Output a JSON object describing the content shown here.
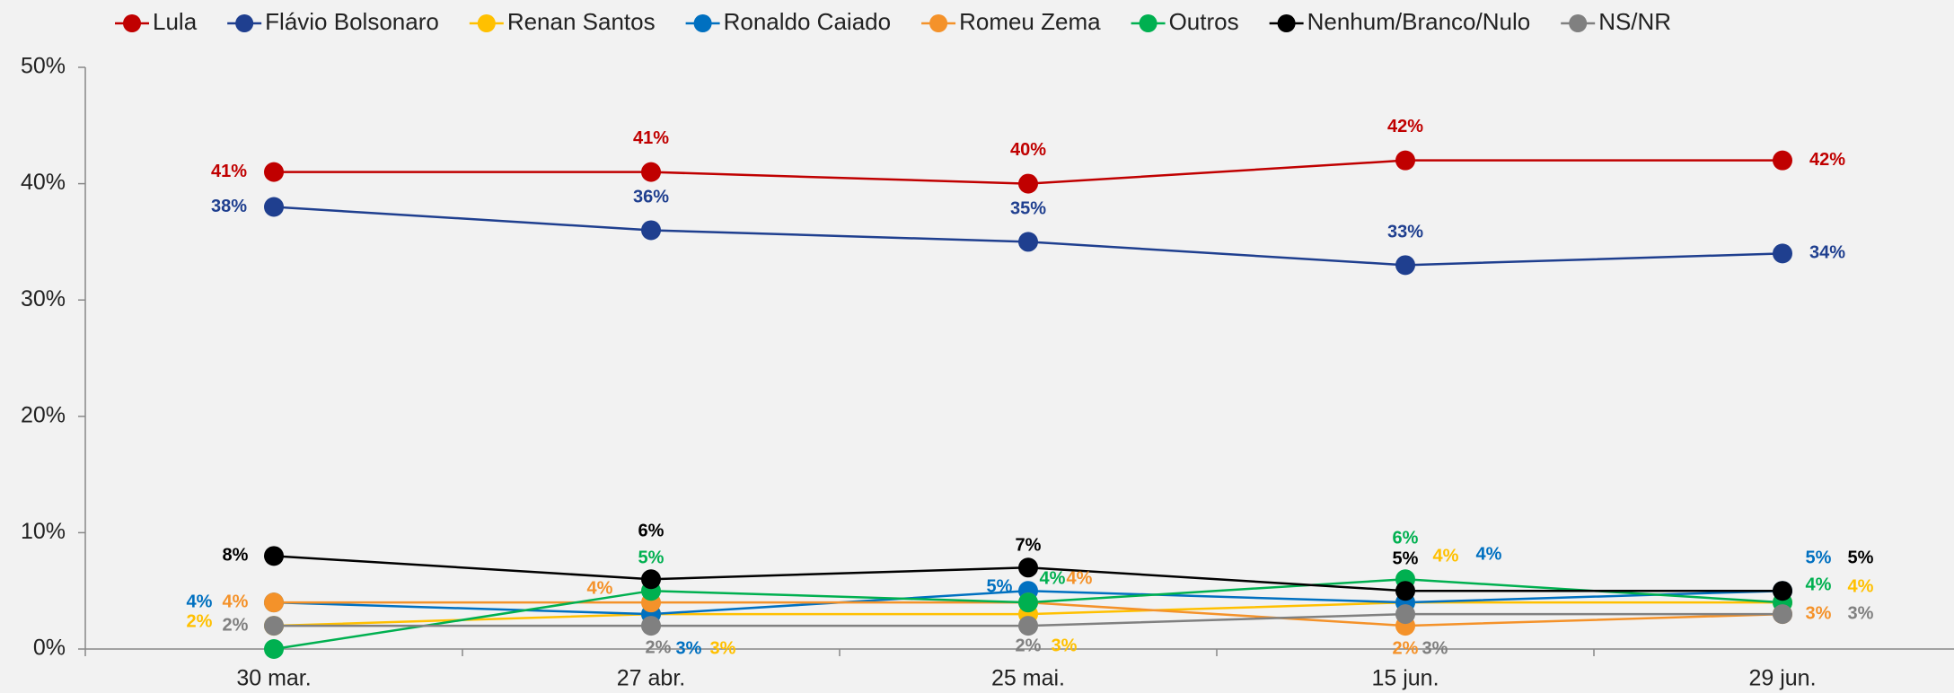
{
  "chart_data": {
    "type": "line",
    "categories": [
      "30 mar.",
      "27 abr.",
      "25 mai.",
      "15 jun.",
      "29 jun."
    ],
    "ylim": [
      0,
      50
    ],
    "yticks": [
      {
        "value": 0,
        "label": "0%"
      },
      {
        "value": 10,
        "label": "10%"
      },
      {
        "value": 20,
        "label": "20%"
      },
      {
        "value": 30,
        "label": "30%"
      },
      {
        "value": 40,
        "label": "40%"
      },
      {
        "value": 50,
        "label": "50%"
      }
    ],
    "legend": "top",
    "series": [
      {
        "name": "Lula",
        "color": "#c00000",
        "values": [
          41,
          41,
          40,
          42,
          42
        ],
        "value_labels": [
          "41%",
          "41%",
          "40%",
          "42%",
          "42%"
        ]
      },
      {
        "name": "Flávio Bolsonaro",
        "color": "#1f3f8f",
        "values": [
          38,
          36,
          35,
          33,
          34
        ],
        "value_labels": [
          "38%",
          "36%",
          "35%",
          "33%",
          "34%"
        ]
      },
      {
        "name": "Renan Santos",
        "color": "#ffc000",
        "values": [
          2,
          3,
          3,
          4,
          4
        ],
        "value_labels": [
          "2%",
          "3%",
          "3%",
          "4%",
          "4%"
        ]
      },
      {
        "name": "Ronaldo Caiado",
        "color": "#0070c0",
        "values": [
          4,
          3,
          5,
          4,
          5
        ],
        "value_labels": [
          "4%",
          "3%",
          "5%",
          "4%",
          "5%"
        ]
      },
      {
        "name": "Romeu Zema",
        "color": "#f4922a",
        "values": [
          4,
          4,
          4,
          2,
          3
        ],
        "value_labels": [
          "4%",
          "4%",
          "4%",
          "2%",
          "3%"
        ]
      },
      {
        "name": "Outros",
        "color": "#00b050",
        "values": [
          0,
          5,
          4,
          6,
          4
        ],
        "value_labels": [
          null,
          "5%",
          "4%",
          "6%",
          "4%"
        ]
      },
      {
        "name": "Nenhum/Branco/Nulo",
        "color": "#000000",
        "values": [
          8,
          6,
          7,
          5,
          5
        ],
        "value_labels": [
          "8%",
          "6%",
          "7%",
          "5%",
          "5%"
        ]
      },
      {
        "name": "NS/NR",
        "color": "#808080",
        "values": [
          2,
          2,
          2,
          3,
          3
        ],
        "value_labels": [
          "2%",
          "2%",
          "2%",
          "3%",
          "3%"
        ]
      }
    ]
  }
}
